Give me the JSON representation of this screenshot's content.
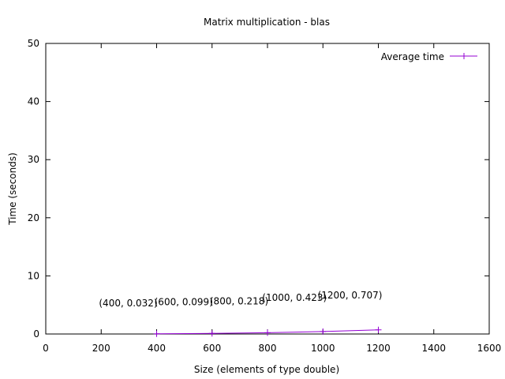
{
  "chart_data": {
    "type": "line",
    "title": "Matrix multiplication - blas",
    "xlabel": "Size (elements of type double)",
    "ylabel": "Time (seconds)",
    "xlim": [
      0,
      1600
    ],
    "ylim": [
      0,
      50
    ],
    "xticks": [
      0,
      200,
      400,
      600,
      800,
      1000,
      1200,
      1400,
      1600
    ],
    "yticks": [
      0,
      10,
      20,
      30,
      40,
      50
    ],
    "grid": false,
    "legend_position": "top-right",
    "series": [
      {
        "name": "Average time",
        "color": "#9400d3",
        "marker": "plus",
        "x": [
          400,
          600,
          800,
          1000,
          1200
        ],
        "y": [
          0.032,
          0.099,
          0.218,
          0.423,
          0.707
        ]
      }
    ],
    "annotations": [
      {
        "text": "(400, 0.032)",
        "x": 400,
        "y": 0.032
      },
      {
        "text": "(600, 0.099)",
        "x": 600,
        "y": 0.099
      },
      {
        "text": "(800, 0.218)",
        "x": 800,
        "y": 0.218
      },
      {
        "text": "(1000, 0.423)",
        "x": 1000,
        "y": 0.423
      },
      {
        "text": "(1200, 0.707)",
        "x": 1200,
        "y": 0.707
      }
    ]
  }
}
